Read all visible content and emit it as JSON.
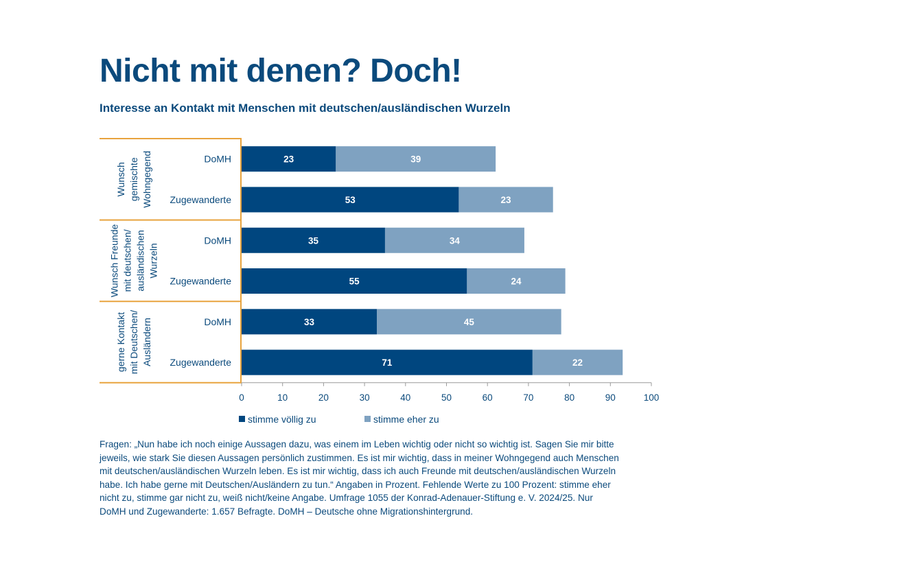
{
  "title": "Nicht mit denen? Doch!",
  "subtitle": "Interesse an Kontakt mit Menschen mit deutschen/ausländischen Wurzeln",
  "colors": {
    "dark": "#00467f",
    "light": "#7fa2c1",
    "group_border": "#e8a33d",
    "text": "#0b4a7c"
  },
  "chart_data": {
    "type": "bar",
    "orientation": "horizontal",
    "stacked": true,
    "groups": [
      {
        "label_lines": [
          "Wunsch",
          "gemischte",
          "Wohngegend"
        ],
        "rows": [
          "DoMH",
          "Zugewanderte"
        ]
      },
      {
        "label_lines": [
          "Wunsch Freunde",
          "mit deutschen/",
          "ausländischen",
          "Wurzeln"
        ],
        "rows": [
          "DoMH",
          "Zugewanderte"
        ]
      },
      {
        "label_lines": [
          "gerne Kontakt",
          "mit Deutschen/",
          "Ausländern"
        ],
        "rows": [
          "DoMH",
          "Zugewanderte"
        ]
      }
    ],
    "categories": [
      "DoMH",
      "Zugewanderte",
      "DoMH",
      "Zugewanderte",
      "DoMH",
      "Zugewanderte"
    ],
    "series": [
      {
        "name": "stimme völlig zu",
        "values": [
          23,
          53,
          35,
          55,
          33,
          71
        ]
      },
      {
        "name": "stimme eher zu",
        "values": [
          39,
          23,
          34,
          24,
          45,
          22
        ]
      }
    ],
    "xlim": [
      0,
      100
    ],
    "xticks": [
      0,
      10,
      20,
      30,
      40,
      50,
      60,
      70,
      80,
      90,
      100
    ],
    "grid": false,
    "legend": "bottom"
  },
  "note_lines": [
    "Fragen: „Nun habe ich noch einige Aussagen dazu, was einem im Leben wichtig oder nicht so wichtig ist. Sagen Sie mir bitte",
    "jeweils, wie stark Sie diesen Aussagen persönlich zustimmen. Es ist mir wichtig, dass in meiner Wohngegend auch Menschen",
    "mit deutschen/ausländischen Wurzeln leben. Es ist mir wichtig, dass ich auch Freunde mit deutschen/ausländischen Wurzeln",
    "habe. Ich habe gerne mit Deutschen/Ausländern zu tun.“ Angaben in Prozent. Fehlende Werte zu 100 Prozent: stimme eher",
    "nicht zu, stimme gar nicht zu, weiß nicht/keine Angabe. Umfrage 1055 der Konrad-Adenauer-Stiftung e. V. 2024/25. Nur",
    "DoMH und Zugewanderte: 1.657 Befragte. DoMH – Deutsche ohne Migrationshintergrund."
  ]
}
